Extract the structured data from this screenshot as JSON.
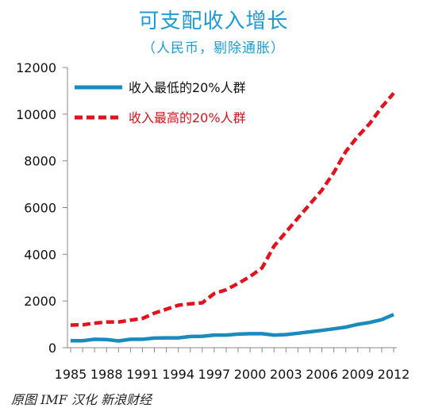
{
  "chart_data": {
    "type": "line",
    "title": "可支配收入增长",
    "subtitle": "（人民币，剔除通胀）",
    "source_note": "原图 IMF  汉化 新浪财经",
    "xlabel": "",
    "ylabel": "",
    "ylim": [
      0,
      12000
    ],
    "yticks": [
      0,
      2000,
      4000,
      6000,
      8000,
      10000,
      12000
    ],
    "xticks": [
      1985,
      1988,
      1991,
      1994,
      1997,
      2000,
      2003,
      2006,
      2009,
      2012
    ],
    "grid": false,
    "legend_position": "top-left",
    "x": [
      1985,
      1986,
      1987,
      1988,
      1989,
      1990,
      1991,
      1992,
      1993,
      1994,
      1995,
      1996,
      1997,
      1998,
      1999,
      2000,
      2001,
      2002,
      2003,
      2004,
      2005,
      2006,
      2007,
      2008,
      2009,
      2010,
      2011,
      2012
    ],
    "series": [
      {
        "name": "收入最低的20%人群",
        "color": "#1a8bbd",
        "dash": "solid",
        "values": [
          300,
          300,
          360,
          350,
          290,
          360,
          360,
          410,
          420,
          420,
          480,
          490,
          540,
          540,
          580,
          600,
          600,
          540,
          560,
          620,
          680,
          740,
          810,
          880,
          1000,
          1080,
          1200,
          1420
        ]
      },
      {
        "name": "收入最高的20%人群",
        "color": "#e0141e",
        "dash": "dashed",
        "values": [
          970,
          980,
          1050,
          1100,
          1100,
          1180,
          1250,
          1480,
          1650,
          1820,
          1880,
          1920,
          2320,
          2480,
          2750,
          3050,
          3420,
          4350,
          4950,
          5550,
          6150,
          6750,
          7500,
          8400,
          9050,
          9600,
          10300,
          10900
        ]
      }
    ]
  }
}
